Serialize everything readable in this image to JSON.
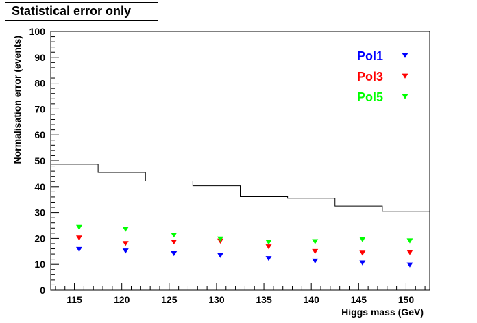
{
  "chart_data": {
    "type": "scatter",
    "title": "Statistical error only",
    "xlabel": "Higgs mass (GeV)",
    "ylabel": "Normalisation error (events)",
    "xlim": [
      112.5,
      152.5
    ],
    "ylim": [
      0,
      100
    ],
    "x_ticks": [
      115,
      120,
      125,
      130,
      135,
      140,
      145,
      150
    ],
    "y_ticks": [
      0,
      10,
      20,
      30,
      40,
      50,
      60,
      70,
      80,
      90,
      100
    ],
    "grid": false,
    "legend_position": "top-right",
    "series": [
      {
        "name": "Pol1",
        "color": "#0000ff",
        "marker": "triangle-down",
        "x": [
          115.5,
          120.4,
          125.5,
          130.4,
          135.5,
          140.4,
          145.4,
          150.4
        ],
        "y": [
          15.8,
          15.2,
          14.2,
          13.5,
          12.3,
          11.3,
          10.6,
          9.8
        ]
      },
      {
        "name": "Pol3",
        "color": "#ff0000",
        "marker": "triangle-down",
        "x": [
          115.5,
          120.4,
          125.5,
          130.4,
          135.5,
          140.4,
          145.4,
          150.4
        ],
        "y": [
          20.2,
          18.1,
          18.7,
          19.0,
          16.8,
          15.0,
          14.4,
          14.6
        ]
      },
      {
        "name": "Pol5",
        "color": "#00ff00",
        "marker": "triangle-down",
        "x": [
          115.5,
          120.4,
          125.5,
          130.4,
          135.5,
          140.4,
          145.4,
          150.4
        ],
        "y": [
          24.3,
          23.6,
          21.3,
          19.8,
          18.6,
          18.8,
          19.6,
          19.1
        ]
      }
    ],
    "histogram": {
      "name": "",
      "color": "#000000",
      "bin_edges": [
        112.5,
        117.5,
        122.5,
        127.5,
        132.5,
        137.5,
        142.5,
        147.5,
        152.5
      ],
      "values": [
        48.7,
        45.5,
        42.2,
        40.3,
        36.1,
        35.5,
        32.5,
        30.5
      ]
    }
  }
}
